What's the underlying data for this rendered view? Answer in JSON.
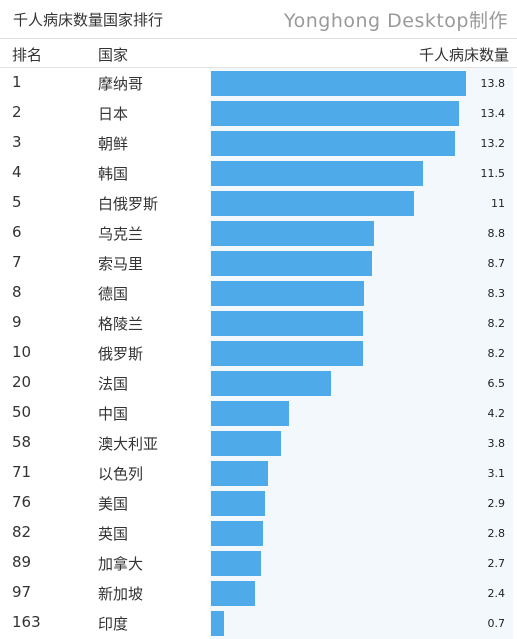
{
  "header": {
    "title": "千人病床数量国家排行",
    "brand": "Yonghong Desktop制作"
  },
  "columns": {
    "rank": "排名",
    "country": "国家",
    "measure": "千人病床数量"
  },
  "colors": {
    "bar": "#4eaae8",
    "plot_background": "#f2f8fc",
    "brand_text": "#9a9a9a"
  },
  "chart_data": {
    "type": "bar",
    "orientation": "horizontal",
    "title": "千人病床数量国家排行",
    "categories": [
      "摩纳哥",
      "日本",
      "朝鲜",
      "韩国",
      "白俄罗斯",
      "乌克兰",
      "索马里",
      "德国",
      "格陵兰",
      "俄罗斯",
      "法国",
      "中国",
      "澳大利亚",
      "以色列",
      "美国",
      "英国",
      "加拿大",
      "新加坡",
      "印度"
    ],
    "ranks": [
      "1",
      "2",
      "3",
      "4",
      "5",
      "6",
      "7",
      "8",
      "9",
      "10",
      "20",
      "50",
      "58",
      "71",
      "76",
      "82",
      "89",
      "97",
      "163"
    ],
    "values": [
      13.8,
      13.4,
      13.2,
      11.5,
      11,
      8.8,
      8.7,
      8.3,
      8.2,
      8.2,
      6.5,
      4.2,
      3.8,
      3.1,
      2.9,
      2.8,
      2.7,
      2.4,
      0.7
    ],
    "value_labels": [
      "13.8",
      "13.4",
      "13.2",
      "11.5",
      "11",
      "8.8",
      "8.7",
      "8.3",
      "8.2",
      "8.2",
      "6.5",
      "4.2",
      "3.8",
      "3.1",
      "2.9",
      "2.8",
      "2.7",
      "2.4",
      "0.7"
    ],
    "xlabel": "千人病床数量",
    "ylabel": "国家",
    "xlim": [
      0,
      13.8
    ],
    "grid": false,
    "legend": "none"
  }
}
